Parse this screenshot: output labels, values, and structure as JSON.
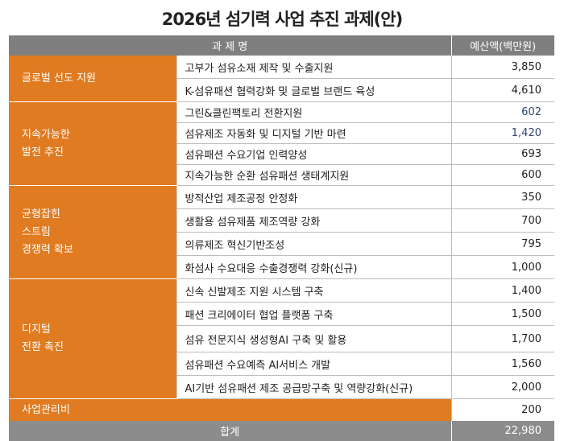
{
  "title": "2026년 섬기력 사업 추진 과제(안)",
  "header": {
    "project": "과 제 명",
    "budget": "예산액(백만원)"
  },
  "categories": [
    {
      "name": "글로벌 선도 지원",
      "items": [
        {
          "name": "고부가 섬유소재 제작 및 수출지원",
          "budget": "3,850"
        },
        {
          "name": "K-섬유패션 협력강화 및 글로벌 브랜드 육성",
          "budget": "4,610"
        }
      ]
    },
    {
      "name": "지속가능한\n발전 추진",
      "items": [
        {
          "name": "그린&클린팩토리 전환지원",
          "budget": "602"
        },
        {
          "name": "섬유제조 자동화 및 디지털 기반 마련",
          "budget": "1,420"
        },
        {
          "name": "섬유패션 수요기업 인력양성",
          "budget": "693"
        },
        {
          "name": "지속가능한 순환 섬유패션 생태계지원",
          "budget": "600"
        }
      ]
    },
    {
      "name": "균형잡힌\n스트림\n경쟁력 확보",
      "items": [
        {
          "name": "방적산업 제조공정 안정화",
          "budget": "350"
        },
        {
          "name": "생활용 섬유제품 제조역량 강화",
          "budget": "700"
        },
        {
          "name": "의류제조 혁신기반조성",
          "budget": "795"
        },
        {
          "name": "화섬사 수요대응 수출경쟁력 강화(신규)",
          "budget": "1,000"
        }
      ]
    },
    {
      "name": "디지털\n전환 촉진",
      "items": [
        {
          "name": "신속 신발제조 지원 시스템 구축",
          "budget": "1,400"
        },
        {
          "name": "패션 크리에이터 협업 플랫폼 구축",
          "budget": "1,500"
        },
        {
          "name": "섬유 전문지식 생성형AI 구축 및 활용",
          "budget": "1,700"
        },
        {
          "name": "섬유패션 수요예측 AI서비스 개발",
          "budget": "1,560"
        },
        {
          "name": "AI기반 섬유패션 제조 공급망구축 및 역량강화(신규)",
          "budget": "2,000"
        }
      ]
    }
  ],
  "management": {
    "name": "사업관리비",
    "budget": "200"
  },
  "total": {
    "label": "합계",
    "budget": "22,980"
  },
  "colors": {
    "category": "#e07b21",
    "header": "#7f7f7f",
    "total": "#8c8c8c",
    "blue_value": "#2e4370"
  }
}
